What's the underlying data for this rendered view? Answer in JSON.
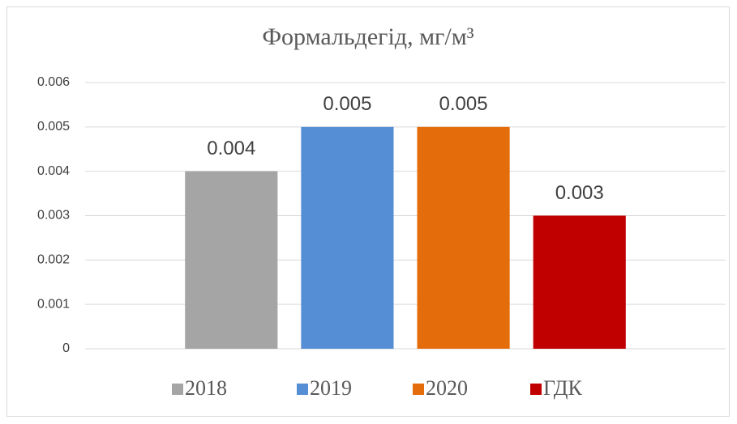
{
  "chart_data": {
    "type": "bar",
    "title": "Формальдегід, мг/м³",
    "categories": [
      null
    ],
    "series": [
      {
        "name": "2018",
        "color": "#a5a5a5",
        "values": [
          0.004
        ]
      },
      {
        "name": "2019",
        "color": "#558ed5",
        "values": [
          0.005
        ]
      },
      {
        "name": "2020",
        "color": "#e46c0a",
        "values": [
          0.005
        ]
      },
      {
        "name": "ГДК",
        "color": "#c00000",
        "values": [
          0.003
        ]
      }
    ],
    "ylim": [
      0,
      0.006
    ],
    "yticks": [
      0,
      0.001,
      0.002,
      0.003,
      0.004,
      0.005,
      0.006
    ],
    "grid": true,
    "legend": "bottom"
  }
}
